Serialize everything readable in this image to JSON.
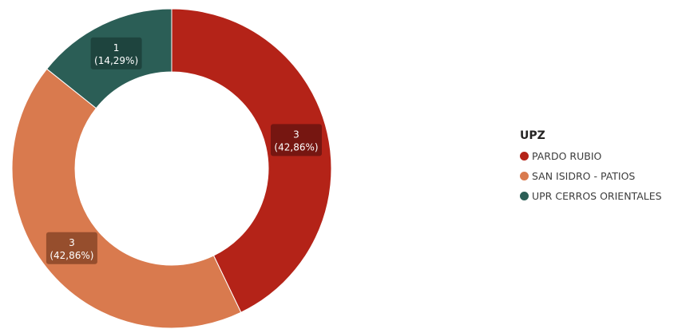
{
  "chart_data": {
    "type": "pie",
    "variant": "donut",
    "legend_title": "UPZ",
    "legend_position": "right",
    "slices": [
      {
        "name": "PARDO RUBIO",
        "value": 3,
        "percent_label": "(42,86%)",
        "color": "#B42318",
        "label_color": "#6B1410"
      },
      {
        "name": "SAN ISIDRO - PATIOS",
        "value": 3,
        "percent_label": "(42,86%)",
        "color": "#D97A4E",
        "label_color": "#8A4728"
      },
      {
        "name": "UPR CERROS ORIENTALES",
        "value": 1,
        "percent_label": "(14,29%)",
        "color": "#2B5E56",
        "label_color": "#1C3F3A"
      }
    ]
  }
}
